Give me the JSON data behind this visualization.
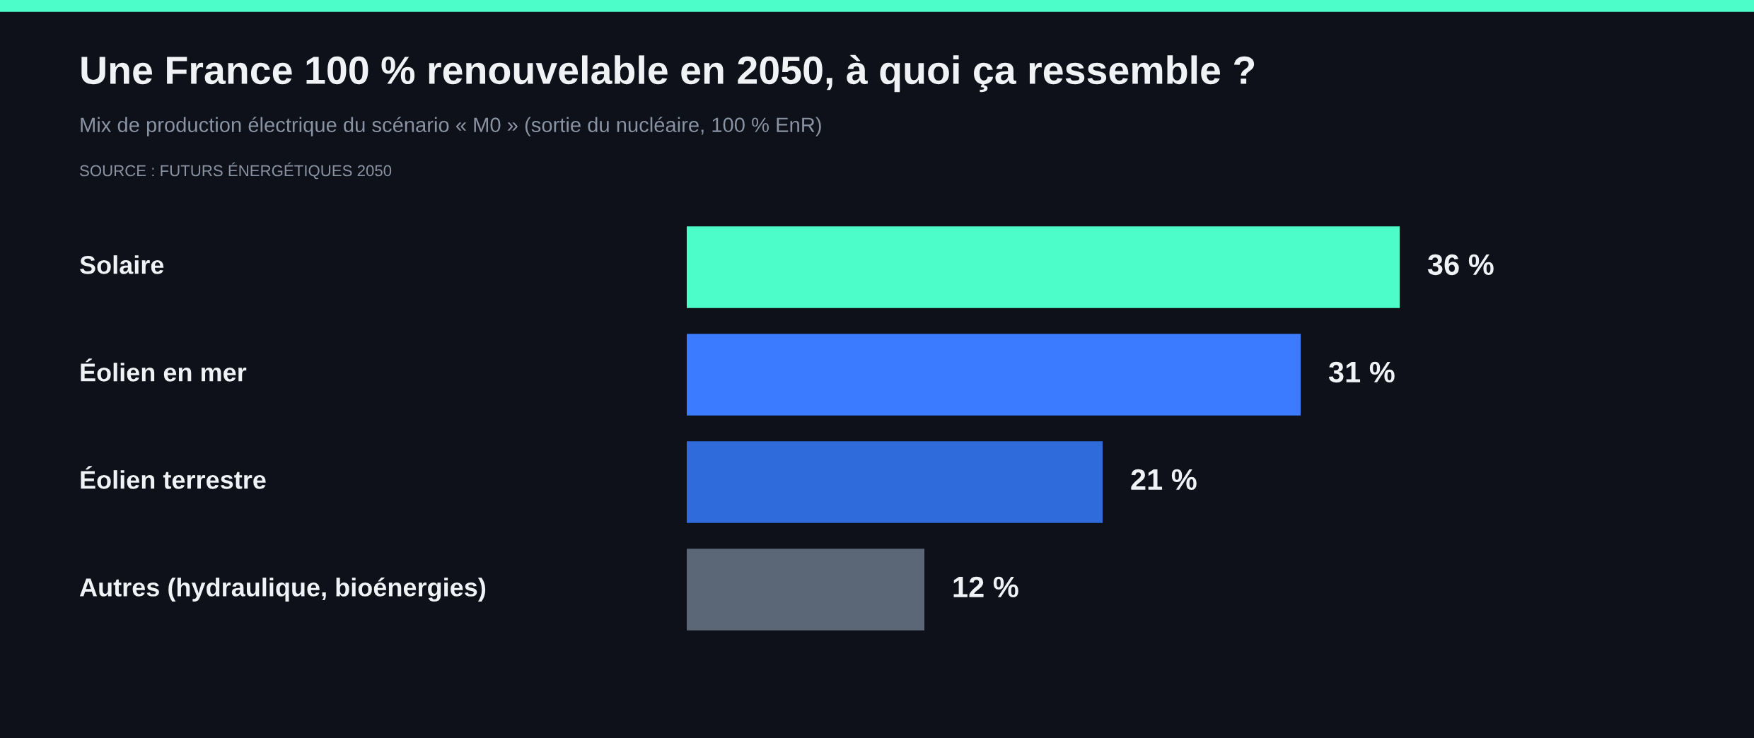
{
  "chart_data": {
    "type": "bar",
    "orientation": "horizontal",
    "title": "Une France 100 % renouvelable en 2050, à quoi ça ressemble ?",
    "subtitle": "Mix de production électrique du scénario « M0 » (sortie du nucléaire, 100 % EnR)",
    "annotations": [
      "SOURCE : FUTURS ÉNERGÉTIQUES 2050"
    ],
    "categories": [
      "Solaire",
      "Éolien en mer",
      "Éolien terrestre",
      "Autres (hydraulique, bioénergies)"
    ],
    "values": [
      36,
      31,
      21,
      12
    ],
    "colors": [
      "#4dfdc9",
      "#3b7bff",
      "#2f6bdb",
      "#5b6777"
    ],
    "value_labels": [
      "36 %",
      "31 %",
      "21 %",
      "12 %"
    ],
    "tick_labels": "y"
  }
}
